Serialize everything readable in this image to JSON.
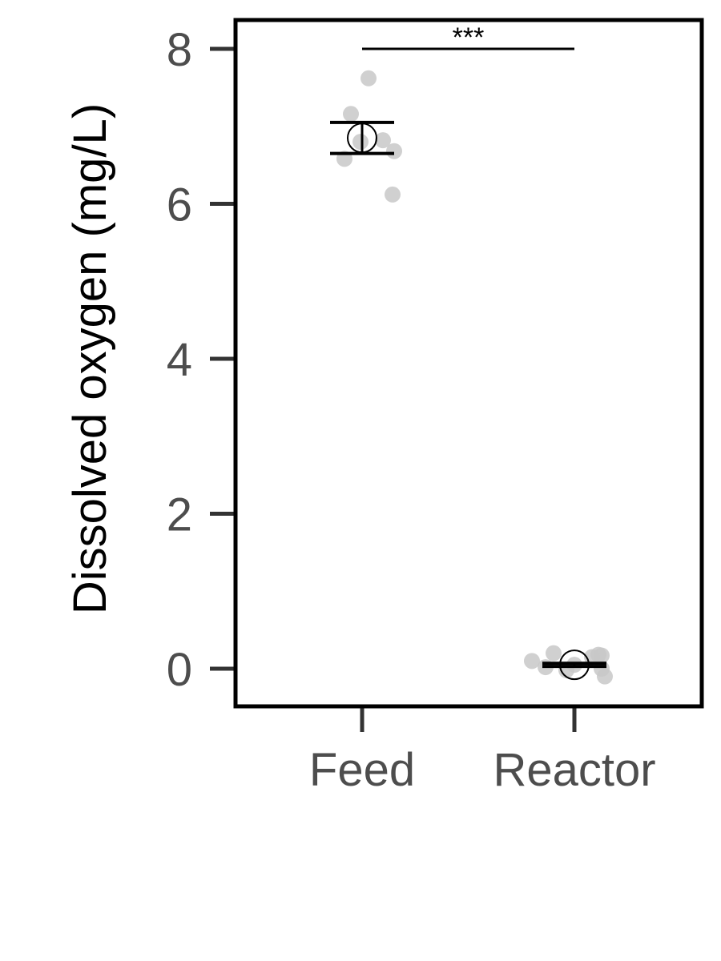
{
  "chart_data": {
    "type": "scatter",
    "ylabel": "Dissolved oxygen (mg/L)",
    "xlabel": "",
    "categories": [
      "Feed",
      "Reactor"
    ],
    "ylim": [
      -0.5,
      8.4
    ],
    "yticks": [
      0,
      2,
      4,
      6,
      8
    ],
    "grid": false,
    "legend": "none",
    "points": [
      {
        "category": "Feed",
        "values": [
          7.62,
          7.16,
          6.82,
          6.8,
          6.68,
          6.58,
          6.12
        ]
      },
      {
        "category": "Reactor",
        "values": [
          0.2,
          0.18,
          0.17,
          0.15,
          0.1,
          0.05,
          0.02,
          0.0,
          -0.02,
          -0.1
        ]
      }
    ],
    "summary": [
      {
        "category": "Feed",
        "mean": 6.85,
        "lower": 6.65,
        "upper": 7.05
      },
      {
        "category": "Reactor",
        "mean": 0.05,
        "lower": 0.03,
        "upper": 0.07
      }
    ],
    "annotations": [
      {
        "type": "significance",
        "from": "Feed",
        "to": "Reactor",
        "y": 8.0,
        "label": "***"
      }
    ],
    "colors": {
      "points": "#c8c8c8",
      "summary": "#000000",
      "frame": "#000000",
      "ticks": "#333333",
      "tick_labels": "#4d4d4d"
    }
  }
}
